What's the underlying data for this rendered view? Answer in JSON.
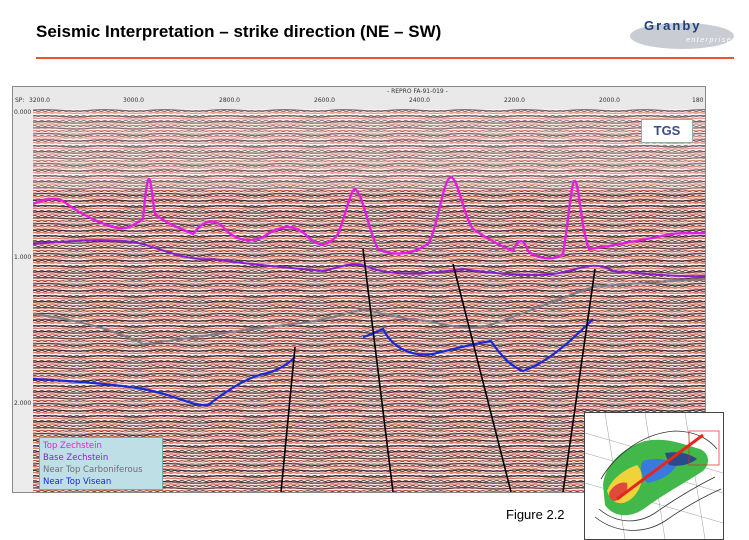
{
  "slide": {
    "title": "Seismic Interpretation – strike direction (NE – SW)",
    "figure_caption": "Figure 2.2",
    "rule_color": "#e8572a"
  },
  "logo": {
    "word": "Granby",
    "sub": "enterprises"
  },
  "seismic": {
    "line_name": "- REPRO FA-91-019 -",
    "sp_label": "SP:",
    "sp_ticks": [
      "3200.0",
      "3000.0",
      "2800.0",
      "2600.0",
      "2400.0",
      "2200.0",
      "2000.0",
      "180"
    ],
    "time_ticks": [
      "0.000",
      "1.000",
      "2.000"
    ],
    "watermark": "TGS"
  },
  "legend": {
    "items": [
      {
        "label": "Top Zechstein",
        "color": "#e020e0"
      },
      {
        "label": "Base Zechstein",
        "color": "#8a1fd0"
      },
      {
        "label": "Near Top Carboniferous",
        "color": "#7e7e86"
      },
      {
        "label": "Near Top Visean",
        "color": "#1a2bd6"
      }
    ]
  }
}
